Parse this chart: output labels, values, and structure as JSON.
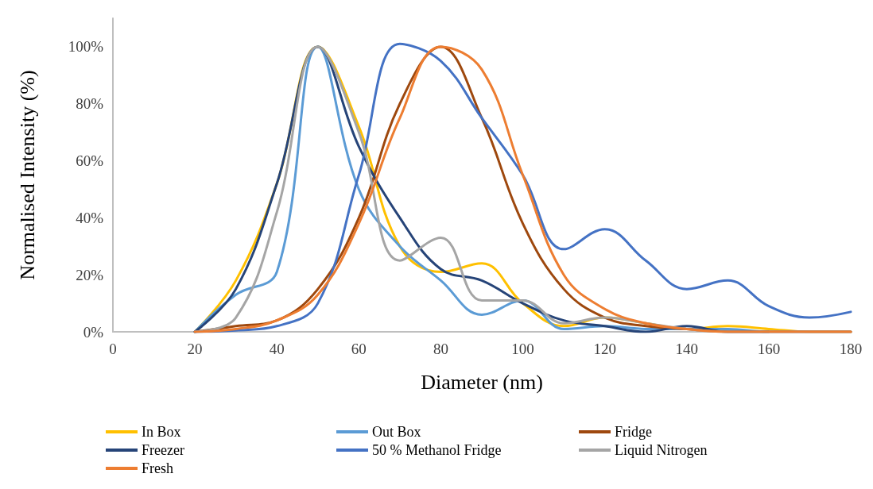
{
  "chart_data": {
    "type": "line",
    "xlabel": "Diameter (nm)",
    "ylabel": "Normalised Intensity (%)",
    "x": [
      20,
      30,
      40,
      50,
      60,
      70,
      80,
      90,
      100,
      110,
      120,
      130,
      140,
      150,
      160,
      170,
      180
    ],
    "xlim": [
      0,
      180
    ],
    "xticks": [
      0,
      20,
      40,
      60,
      80,
      100,
      120,
      140,
      160,
      180
    ],
    "ylim": [
      0,
      110
    ],
    "yticks": [
      {
        "value": 0,
        "label": "0%"
      },
      {
        "value": 20,
        "label": "20%"
      },
      {
        "value": 40,
        "label": "40%"
      },
      {
        "value": 60,
        "label": "60%"
      },
      {
        "value": 80,
        "label": "80%"
      },
      {
        "value": 100,
        "label": "100%"
      }
    ],
    "grid": false,
    "legend": "bottom",
    "marker": "none",
    "line_style": "solid",
    "series": [
      {
        "name": "In Box",
        "color": "#ffc000",
        "values": [
          0,
          18,
          52,
          100,
          72,
          30,
          21,
          24,
          10,
          2,
          5,
          3,
          1,
          2,
          1,
          0,
          0
        ]
      },
      {
        "name": "Out Box",
        "color": "#5b9bd5",
        "values": [
          0,
          13,
          21,
          100,
          50,
          30,
          18,
          6,
          11,
          1,
          2,
          1,
          1,
          1,
          0,
          0,
          0
        ]
      },
      {
        "name": "Fridge",
        "color": "#9e480e",
        "values": [
          0,
          2,
          4,
          15,
          40,
          80,
          100,
          75,
          38,
          15,
          5,
          2,
          1,
          0,
          0,
          0,
          0
        ]
      },
      {
        "name": "Freezer",
        "color": "#264478",
        "values": [
          0,
          15,
          52,
          100,
          65,
          40,
          22,
          18,
          10,
          4,
          2,
          0,
          2,
          0,
          0,
          null,
          null
        ]
      },
      {
        "name": "50 % Methanol Fridge",
        "color": "#4472c4",
        "values": [
          0,
          0.5,
          2,
          10,
          55,
          101,
          95,
          75,
          55,
          29,
          36,
          25,
          15,
          18,
          9,
          5,
          7
        ]
      },
      {
        "name": "Liquid Nitrogen",
        "color": "#a5a5a5",
        "values": [
          0,
          5,
          42,
          100,
          70,
          25,
          33,
          11,
          11,
          3,
          5,
          3,
          1,
          0,
          0,
          0,
          0
        ]
      },
      {
        "name": "Fresh",
        "color": "#ed7d31",
        "values": [
          0,
          1,
          4,
          13,
          38,
          75,
          100,
          92,
          55,
          20,
          8,
          3,
          1,
          0,
          0,
          0,
          0
        ]
      }
    ]
  }
}
